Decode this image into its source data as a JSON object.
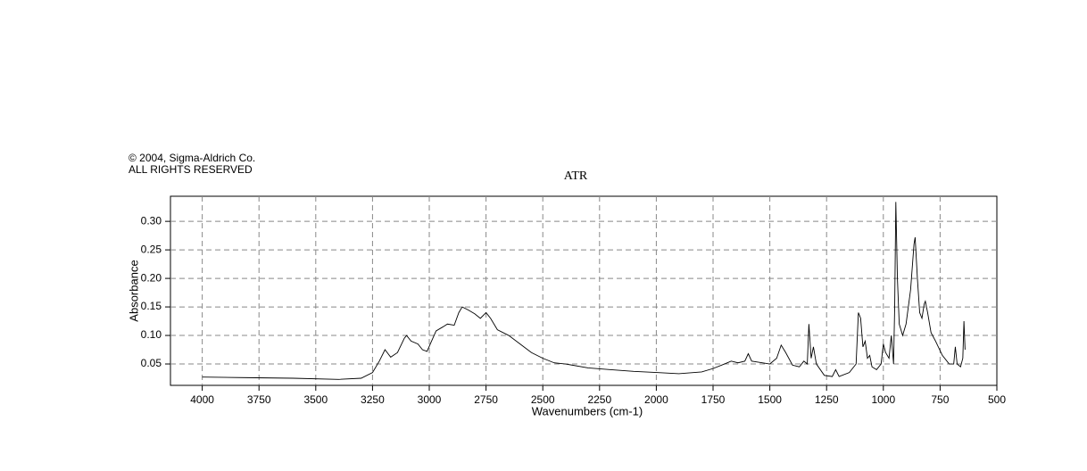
{
  "chart_data": {
    "type": "line",
    "notice": [
      "© 2004, Sigma-Aldrich Co.",
      "ALL RIGHTS RESERVED"
    ],
    "title": "ATR",
    "x_label": "Wavenumbers (cm-1)",
    "y_label": "Absorbance",
    "xlim": [
      4140,
      500
    ],
    "ylim": [
      0.0125,
      0.344
    ],
    "xticks": [
      4000,
      3750,
      3500,
      3250,
      3000,
      2750,
      2500,
      2250,
      2000,
      1750,
      1500,
      1250,
      1000,
      750,
      500
    ],
    "yticks": [
      0.05,
      {
        "value": 0.1,
        "label": "0.10"
      },
      0.15,
      {
        "value": 0.2,
        "label": "0.20"
      },
      0.25,
      {
        "value": 0.3,
        "label": "0.30"
      }
    ],
    "grid": true,
    "series": [
      {
        "color": "#000000",
        "x": [
          4000,
          3800,
          3600,
          3400,
          3300,
          3250,
          3220,
          3195,
          3170,
          3140,
          3110,
          3100,
          3080,
          3050,
          3030,
          3010,
          2990,
          2970,
          2940,
          2920,
          2890,
          2870,
          2855,
          2830,
          2800,
          2775,
          2750,
          2730,
          2700,
          2650,
          2600,
          2550,
          2500,
          2450,
          2400,
          2300,
          2200,
          2100,
          2000,
          1900,
          1800,
          1750,
          1700,
          1670,
          1640,
          1610,
          1595,
          1580,
          1500,
          1470,
          1450,
          1430,
          1400,
          1370,
          1350,
          1335,
          1328,
          1318,
          1308,
          1295,
          1260,
          1225,
          1210,
          1195,
          1150,
          1120,
          1110,
          1100,
          1090,
          1080,
          1070,
          1060,
          1050,
          1030,
          1010,
          1000,
          990,
          975,
          965,
          955,
          950,
          945,
          938,
          930,
          915,
          900,
          880,
          865,
          860,
          850,
          840,
          830,
          820,
          815,
          805,
          790,
          770,
          740,
          710,
          690,
          683,
          675,
          660,
          650,
          645,
          640
        ],
        "values": [
          0.027,
          0.026,
          0.025,
          0.023,
          0.025,
          0.035,
          0.055,
          0.075,
          0.062,
          0.07,
          0.095,
          0.1,
          0.09,
          0.085,
          0.075,
          0.072,
          0.09,
          0.108,
          0.115,
          0.12,
          0.118,
          0.14,
          0.15,
          0.145,
          0.138,
          0.13,
          0.14,
          0.13,
          0.11,
          0.1,
          0.085,
          0.07,
          0.06,
          0.052,
          0.05,
          0.043,
          0.04,
          0.037,
          0.035,
          0.033,
          0.036,
          0.042,
          0.05,
          0.055,
          0.052,
          0.055,
          0.068,
          0.055,
          0.05,
          0.06,
          0.083,
          0.07,
          0.048,
          0.045,
          0.055,
          0.05,
          0.12,
          0.06,
          0.08,
          0.05,
          0.03,
          0.028,
          0.04,
          0.028,
          0.035,
          0.05,
          0.14,
          0.13,
          0.08,
          0.09,
          0.06,
          0.065,
          0.045,
          0.04,
          0.05,
          0.085,
          0.07,
          0.06,
          0.1,
          0.05,
          0.15,
          0.334,
          0.2,
          0.12,
          0.1,
          0.12,
          0.18,
          0.26,
          0.272,
          0.2,
          0.14,
          0.13,
          0.155,
          0.16,
          0.14,
          0.105,
          0.09,
          0.065,
          0.05,
          0.05,
          0.08,
          0.05,
          0.045,
          0.06,
          0.125,
          0.075
        ]
      }
    ]
  }
}
